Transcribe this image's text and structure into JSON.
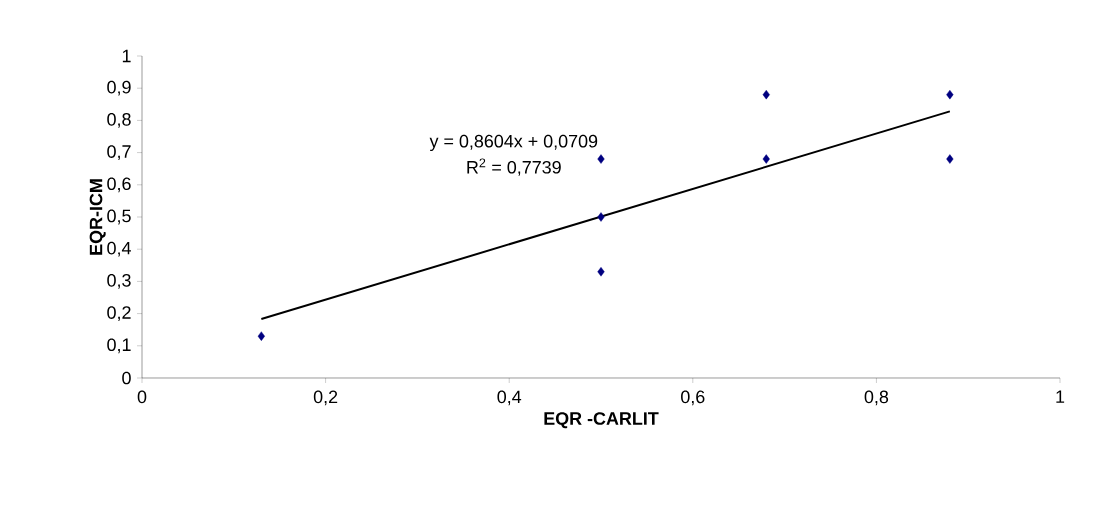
{
  "chart_data": {
    "type": "scatter",
    "xlabel": "EQR -CARLIT",
    "ylabel": "EQR-ICM",
    "annotations": [
      "y = 0,8604x + 0,0709",
      "R$^{2}$ = 0,7739"
    ],
    "series": [
      {
        "color": "#000080",
        "marker": "diamond",
        "x": [
          0.13,
          0.5,
          0.5,
          0.5,
          0.68,
          0.68,
          0.88,
          0.88
        ],
        "values": [
          0.13,
          0.5,
          0.68,
          0.33,
          0.88,
          0.68,
          0.88,
          0.68
        ]
      },
      {
        "type": "line",
        "color": "#000000",
        "x": [
          0.13,
          0.88
        ],
        "values": [
          0.183,
          0.828
        ]
      }
    ],
    "xlim": [
      0,
      1
    ],
    "ylim": [
      0,
      1
    ],
    "xticks": [
      0,
      {
        "value": 0.2,
        "label": "0,2"
      },
      {
        "value": 0.4,
        "label": "0,4"
      },
      {
        "value": 0.6,
        "label": "0,6"
      },
      {
        "value": 0.8,
        "label": "0,8"
      },
      1
    ],
    "yticks": [
      0,
      {
        "value": 0.1,
        "label": "0,1"
      },
      {
        "value": 0.2,
        "label": "0,2"
      },
      {
        "value": 0.3,
        "label": "0,3"
      },
      {
        "value": 0.4,
        "label": "0,4"
      },
      {
        "value": 0.5,
        "label": "0,5"
      },
      {
        "value": 0.6,
        "label": "0,6"
      },
      {
        "value": 0.7,
        "label": "0,7"
      },
      {
        "value": 0.8,
        "label": "0,8"
      },
      {
        "value": 0.9,
        "label": "0,9"
      },
      1
    ],
    "grid": false
  }
}
